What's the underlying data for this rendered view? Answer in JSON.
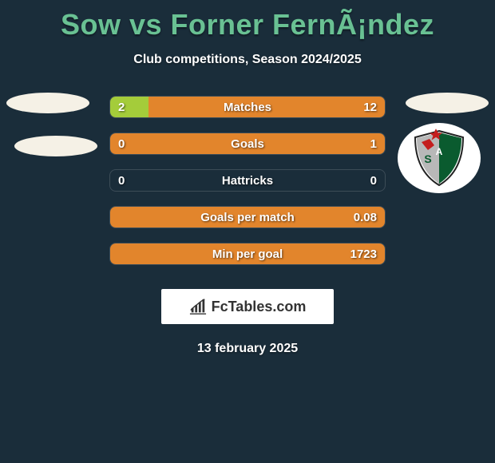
{
  "title": "Sow vs Forner FernÃ¡ndez",
  "subtitle": "Club competitions, Season 2024/2025",
  "date": "13 february 2025",
  "brand": "FcTables.com",
  "colors": {
    "bg": "#1a2d3a",
    "title": "#69c193",
    "left_fill": "#a4cc3a",
    "right_fill": "#e2852c",
    "text": "#ffffff"
  },
  "badge_colors": {
    "bg": "#ffffff",
    "red": "#c41e1e",
    "green": "#0a5b2f",
    "grey": "#b8b8b8",
    "star": "#c41e1e",
    "ribbon": "#c41e1e",
    "outline": "#222222"
  },
  "rows": [
    {
      "label": "Matches",
      "left": "2",
      "right": "12",
      "left_pct": 14,
      "right_pct": 86
    },
    {
      "label": "Goals",
      "left": "0",
      "right": "1",
      "left_pct": 0,
      "right_pct": 100
    },
    {
      "label": "Hattricks",
      "left": "0",
      "right": "0",
      "left_pct": 0,
      "right_pct": 0
    },
    {
      "label": "Goals per match",
      "left": "",
      "right": "0.08",
      "left_pct": 0,
      "right_pct": 100
    },
    {
      "label": "Min per goal",
      "left": "",
      "right": "1723",
      "left_pct": 0,
      "right_pct": 100
    }
  ]
}
